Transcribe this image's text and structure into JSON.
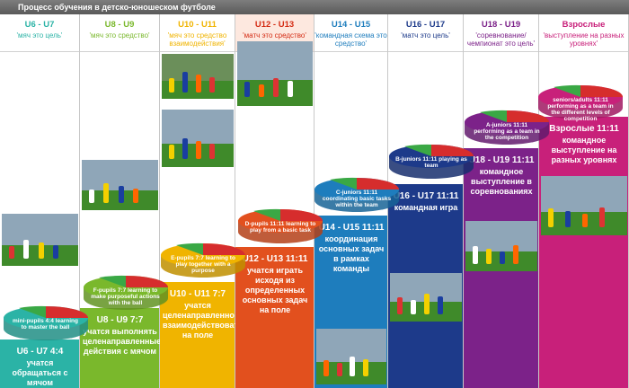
{
  "title": "Процесс обучения в детско-юношеском футболе",
  "columns": [
    {
      "age": "U6 - U7",
      "motto": "'мяч это цель'",
      "color": "#2bb3a6",
      "disc_label": "mini-pupils 4:4\nlearning to master the ball",
      "format": "U6 - U7 4:4",
      "text": "учатся обращаться с мячом"
    },
    {
      "age": "U8 - U9",
      "motto": "'мяч это средство'",
      "color": "#7ab82c",
      "disc_label": "F-pupils 7:7\nlearning to make purposeful actions with the ball",
      "format": "U8 - U9 7:7",
      "text": "учатся выполнять целенаправленные действия с мячом"
    },
    {
      "age": "U10 - U11",
      "motto": "'мяч это средство взаимодействия'",
      "color": "#f0b400",
      "disc_label": "E-pupils 7:7\nlearning to play together with a purpose",
      "format": "U10 - U11 7:7",
      "text": "учатся целенаправленно взаимодействовать на поле"
    },
    {
      "age": "U12 - U13",
      "motto": "'матч это средство'",
      "color": "#e2501e",
      "disc_label": "D-pupils 11:11\nlearning to play from a basic task",
      "format": "U12 - U13 11:11",
      "text": "учатся играть исходя из определенных основных задач на поле"
    },
    {
      "age": "U14 - U15",
      "motto": "'командная схема это средство'",
      "color": "#1e7dbd",
      "disc_label": "C-juniors 11:11\ncoordinating basic tasks within the team",
      "format": "U14 - U15 11:11",
      "text": "координация основных задач в рамках команды"
    },
    {
      "age": "U16 - U17",
      "motto": "'матч это цель'",
      "color": "#1d3a8a",
      "disc_label": "B-juniors 11:11\nplaying as team",
      "format": "U16 - U17 11:11",
      "text": "командная игра"
    },
    {
      "age": "U18 - U19",
      "motto": "'соревнование/чемпионат это цель'",
      "color": "#7c2289",
      "disc_label": "A-juniors 11:11\nperforming as a team in the competition",
      "format": "U18 - U19 11:11",
      "text": "командное выступление в соревнованиях"
    },
    {
      "age": "Взрослые",
      "motto": "'выступление на разных уровнях'",
      "color": "#c8207a",
      "disc_label": "seniors/adults 11:11\nperforming as a team in the different levels of competition",
      "format": "Взрослые 11:11",
      "text": "командное выступление на разных уровнях"
    }
  ]
}
